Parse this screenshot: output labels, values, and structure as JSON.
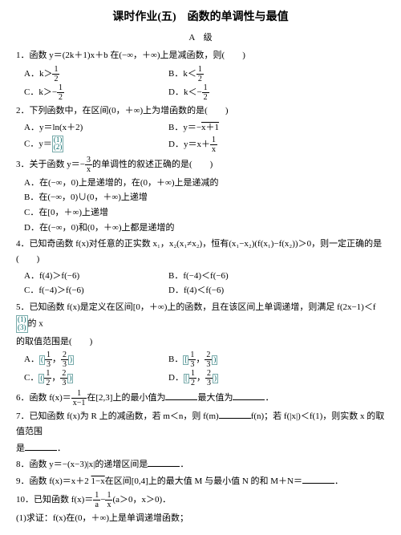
{
  "title": "课时作业(五)　函数的单调性与最值",
  "level": "A　级",
  "q1": {
    "stem": "1．函数 y＝(2k＋1)x＋b 在(−∞，＋∞)上是减函数，则(　　)",
    "a": "A．k＞",
    "a_frac": [
      "1",
      "2"
    ],
    "b": "B．k＜",
    "b_frac": [
      "1",
      "2"
    ],
    "c": "C．k＞−",
    "c_frac": [
      "1",
      "2"
    ],
    "d": "D．k＜−",
    "d_frac": [
      "1",
      "2"
    ]
  },
  "q2": {
    "stem": "2．下列函数中，在区间(0，＋∞)上为增函数的是(　　)",
    "a": "A．y＝ln(x＋2)",
    "b_pre": "B．y＝−",
    "b_sqrt": "x＋1",
    "c": "C．y＝",
    "d_pre": "D．y＝x＋",
    "d_frac": [
      "1",
      "x"
    ]
  },
  "q3": {
    "stem_pre": "3．关于函数 y＝−",
    "stem_frac": [
      "3",
      "x"
    ],
    "stem_post": "的单调性的叙述正确的是(　　)",
    "a": "A．在(−∞，0)上是递增的，在(0，＋∞)上是递减的",
    "b": "B．在(−∞，0)∪(0，＋∞)上递增",
    "c": "C．在[0，＋∞)上递增",
    "d": "D．在(−∞，0)和(0，＋∞)上都是递增的"
  },
  "q4": {
    "stem": "4．已知奇函数 f(x)对任意的正实数 x₁，x₂(x₁≠x₂)，恒有(x₁−x₂)(f(x₁)−f(x₂))＞0，则一定正确的是(　　)",
    "a": "A．f(4)＞f(−6)",
    "b": "B．f(−4)＜f(−6)",
    "c": "C．f(−4)＞f(−6)",
    "d": "D．f(4)＜f(−6)"
  },
  "q5": {
    "stem_pre": "5．已知函数 f(x)是定义在区间[0，＋∞)上的函数，且在该区间上单调递增，则满足 f(2x−1)＜f",
    "stem_post": "的 x",
    "line2": "的取值范围是(　　)",
    "a_pre": "A．",
    "a_frac1": [
      "1",
      "3"
    ],
    "a_mid": "，",
    "a_frac2": [
      "2",
      "3"
    ],
    "b_pre": "B．",
    "b_frac1": [
      "1",
      "3"
    ],
    "b_mid": "，",
    "b_frac2": [
      "2",
      "3"
    ],
    "c_pre": "C．",
    "c_frac1": [
      "1",
      "2"
    ],
    "c_mid": "，",
    "c_frac2": [
      "2",
      "3"
    ],
    "d_pre": "D．",
    "d_frac1": [
      "1",
      "2"
    ],
    "d_mid": "，",
    "d_frac2": [
      "2",
      "3"
    ]
  },
  "q6": {
    "pre": "6．函数 f(x)＝",
    "frac": [
      "1",
      "x−1"
    ],
    "post": "在[2,3]上的最小值为",
    "post2": "最大值为",
    "end": "．"
  },
  "q7": {
    "line1_pre": "7．已知函数 f(x)为 R 上的减函数，若 m＜n，则 f(m)",
    "line1_mid": "f(n)；若 f(|x|)＜f(1)，则实数 x 的取值范围",
    "line2": "是",
    "end": "．"
  },
  "q8": {
    "stem": "8．函数 y＝−(x−3)|x|的递增区间是",
    "end": "．"
  },
  "q9": {
    "pre": "9．函数 f(x)＝x＋2 ",
    "sqrt": "1−x",
    "mid": "在区间[0,4]上的最大值 M 与最小值 N 的和 M＋N＝",
    "end": "．"
  },
  "q10": {
    "pre": "10．已知函数 f(x)＝",
    "frac": [
      "1",
      "a"
    ],
    "mid": "−",
    "frac2": [
      "1",
      "x"
    ],
    "post": "(a＞0，x＞0)．",
    "sub": "(1)求证：f(x)在(0，＋∞)上是单调递增函数；"
  }
}
